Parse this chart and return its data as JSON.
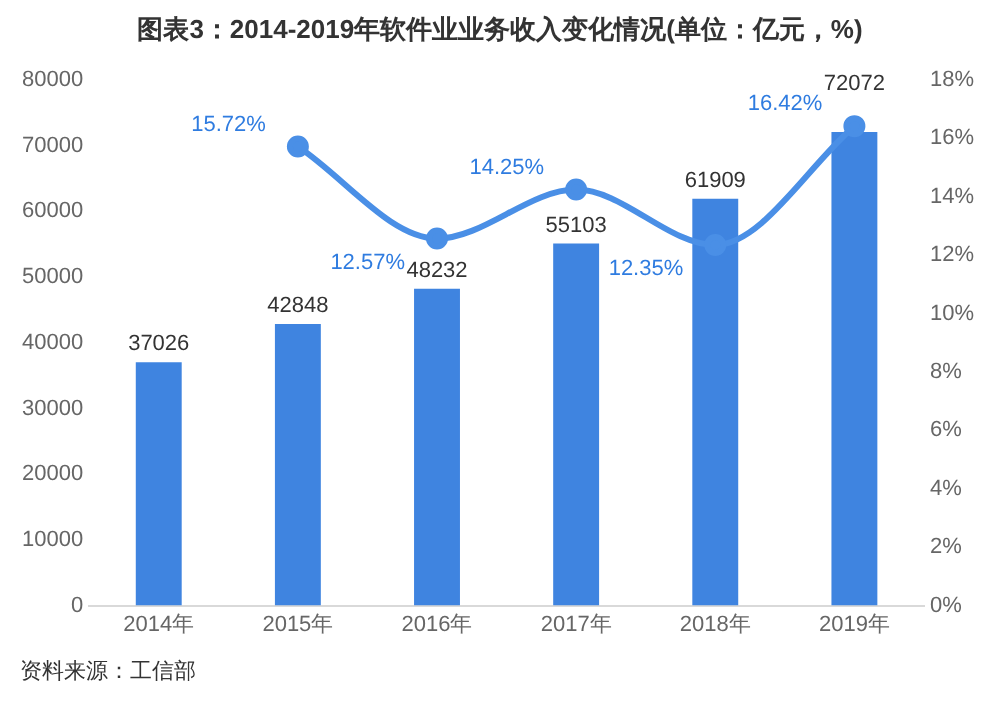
{
  "chart_data": {
    "type": "bar",
    "title": "图表3：2014-2019年软件业业务收入变化情况(单位：亿元，%)",
    "categories": [
      "2014年",
      "2015年",
      "2016年",
      "2017年",
      "2018年",
      "2019年"
    ],
    "series": [
      {
        "color": "#3f84e0",
        "values": [
          37026,
          42848,
          48232,
          55103,
          61909,
          72072
        ],
        "value_labels": [
          "37026",
          "42848",
          "48232",
          "55103",
          "61909",
          "72072"
        ]
      },
      {
        "type": "line",
        "axis": "y2",
        "color": "#4a8fe6",
        "marker": "circle",
        "values": [
          null,
          15.72,
          12.57,
          14.25,
          12.35,
          16.42
        ],
        "value_labels": [
          null,
          "15.72%",
          "12.57%",
          "14.25%",
          "12.35%",
          "16.42%"
        ]
      }
    ],
    "ylim": [
      0,
      80000
    ],
    "yticks": [
      0,
      10000,
      20000,
      30000,
      40000,
      50000,
      60000,
      70000,
      80000
    ],
    "y2lim": [
      0,
      18
    ],
    "y2ticks": [
      {
        "value": 0,
        "label": "0%"
      },
      {
        "value": 2,
        "label": "2%"
      },
      {
        "value": 4,
        "label": "4%"
      },
      {
        "value": 6,
        "label": "6%"
      },
      {
        "value": 8,
        "label": "8%"
      },
      {
        "value": 10,
        "label": "10%"
      },
      {
        "value": 12,
        "label": "12%"
      },
      {
        "value": 14,
        "label": "14%"
      },
      {
        "value": 16,
        "label": "16%"
      },
      {
        "value": 18,
        "label": "18%"
      }
    ],
    "grid": false,
    "legend": false,
    "annotations": [
      "资料来源：工信部"
    ]
  }
}
